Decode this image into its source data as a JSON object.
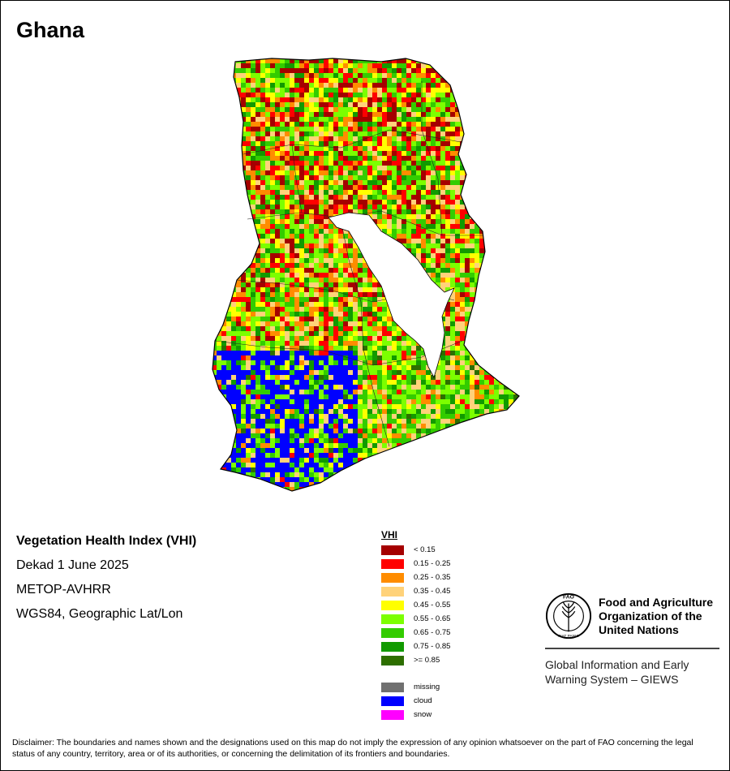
{
  "title": "Ghana",
  "info": {
    "heading": "Vegetation Health Index (VHI)",
    "line1": "Dekad 1 June 2025",
    "line2": "METOP-AVHRR",
    "line3": "WGS84, Geographic Lat/Lon"
  },
  "legend": {
    "title": "VHI",
    "classes": [
      {
        "label": "< 0.15",
        "color": "#a50000"
      },
      {
        "label": "0.15 - 0.25",
        "color": "#ff0000"
      },
      {
        "label": "0.25 - 0.35",
        "color": "#ff8c00"
      },
      {
        "label": "0.35 - 0.45",
        "color": "#ffd27a"
      },
      {
        "label": "0.45 - 0.55",
        "color": "#ffff00"
      },
      {
        "label": "0.55 - 0.65",
        "color": "#7cff00"
      },
      {
        "label": "0.65 - 0.75",
        "color": "#33cc00"
      },
      {
        "label": "0.75 - 0.85",
        "color": "#119a00"
      },
      {
        "label": ">= 0.85",
        "color": "#2d6e00"
      }
    ],
    "special": [
      {
        "label": "missing",
        "color": "#707070"
      },
      {
        "label": "cloud",
        "color": "#0000ff"
      },
      {
        "label": "snow",
        "color": "#ff00ff"
      }
    ]
  },
  "logo": {
    "org_name": "Food and Agriculture Organization of the United Nations",
    "emblem_text": "FAO",
    "emblem_motto": "FIAT PANIS",
    "system_name": "Global Information and Early Warning System – GIEWS"
  },
  "disclaimer": "Disclaimer: The boundaries and names shown and the designations used on this map do not imply the expression of any opinion whatsoever on the part of FAO concerning the legal status of any country, territory, area or of its authorities, or concerning the delimitation of its frontiers and boundaries."
}
